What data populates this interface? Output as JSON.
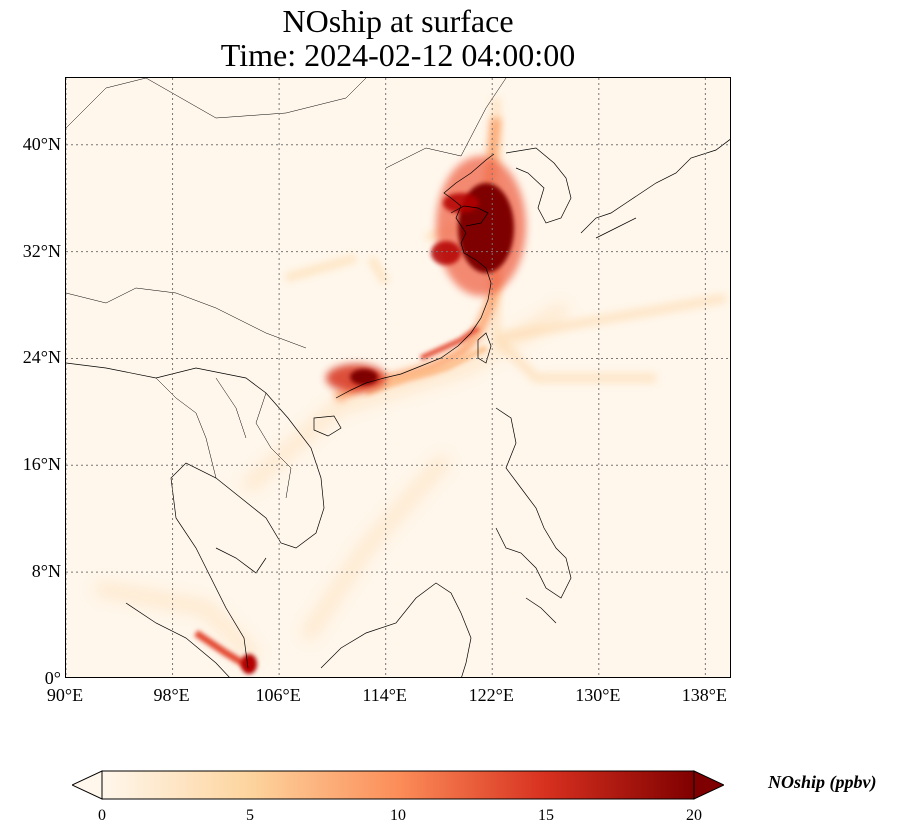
{
  "title": {
    "line1": "NOship at surface",
    "line2": "Time: 2024-02-12 04:00:00"
  },
  "axes": {
    "lon_ticks": [
      "90°E",
      "98°E",
      "106°E",
      "114°E",
      "122°E",
      "130°E",
      "138°E"
    ],
    "lat_ticks": [
      "0°",
      "8°N",
      "16°N",
      "24°N",
      "32°N",
      "40°N"
    ],
    "lon_range": [
      90,
      140
    ],
    "lat_range": [
      0,
      45
    ]
  },
  "colorbar": {
    "label": "NOship (ppbv)",
    "ticks": [
      "0",
      "5",
      "10",
      "15",
      "20"
    ],
    "range": [
      0,
      20
    ],
    "colormap": "OrRd",
    "extend": "both",
    "colors": [
      "#fff7ec",
      "#fdd49e",
      "#fc8d59",
      "#d7301f",
      "#7f0000"
    ]
  }
}
